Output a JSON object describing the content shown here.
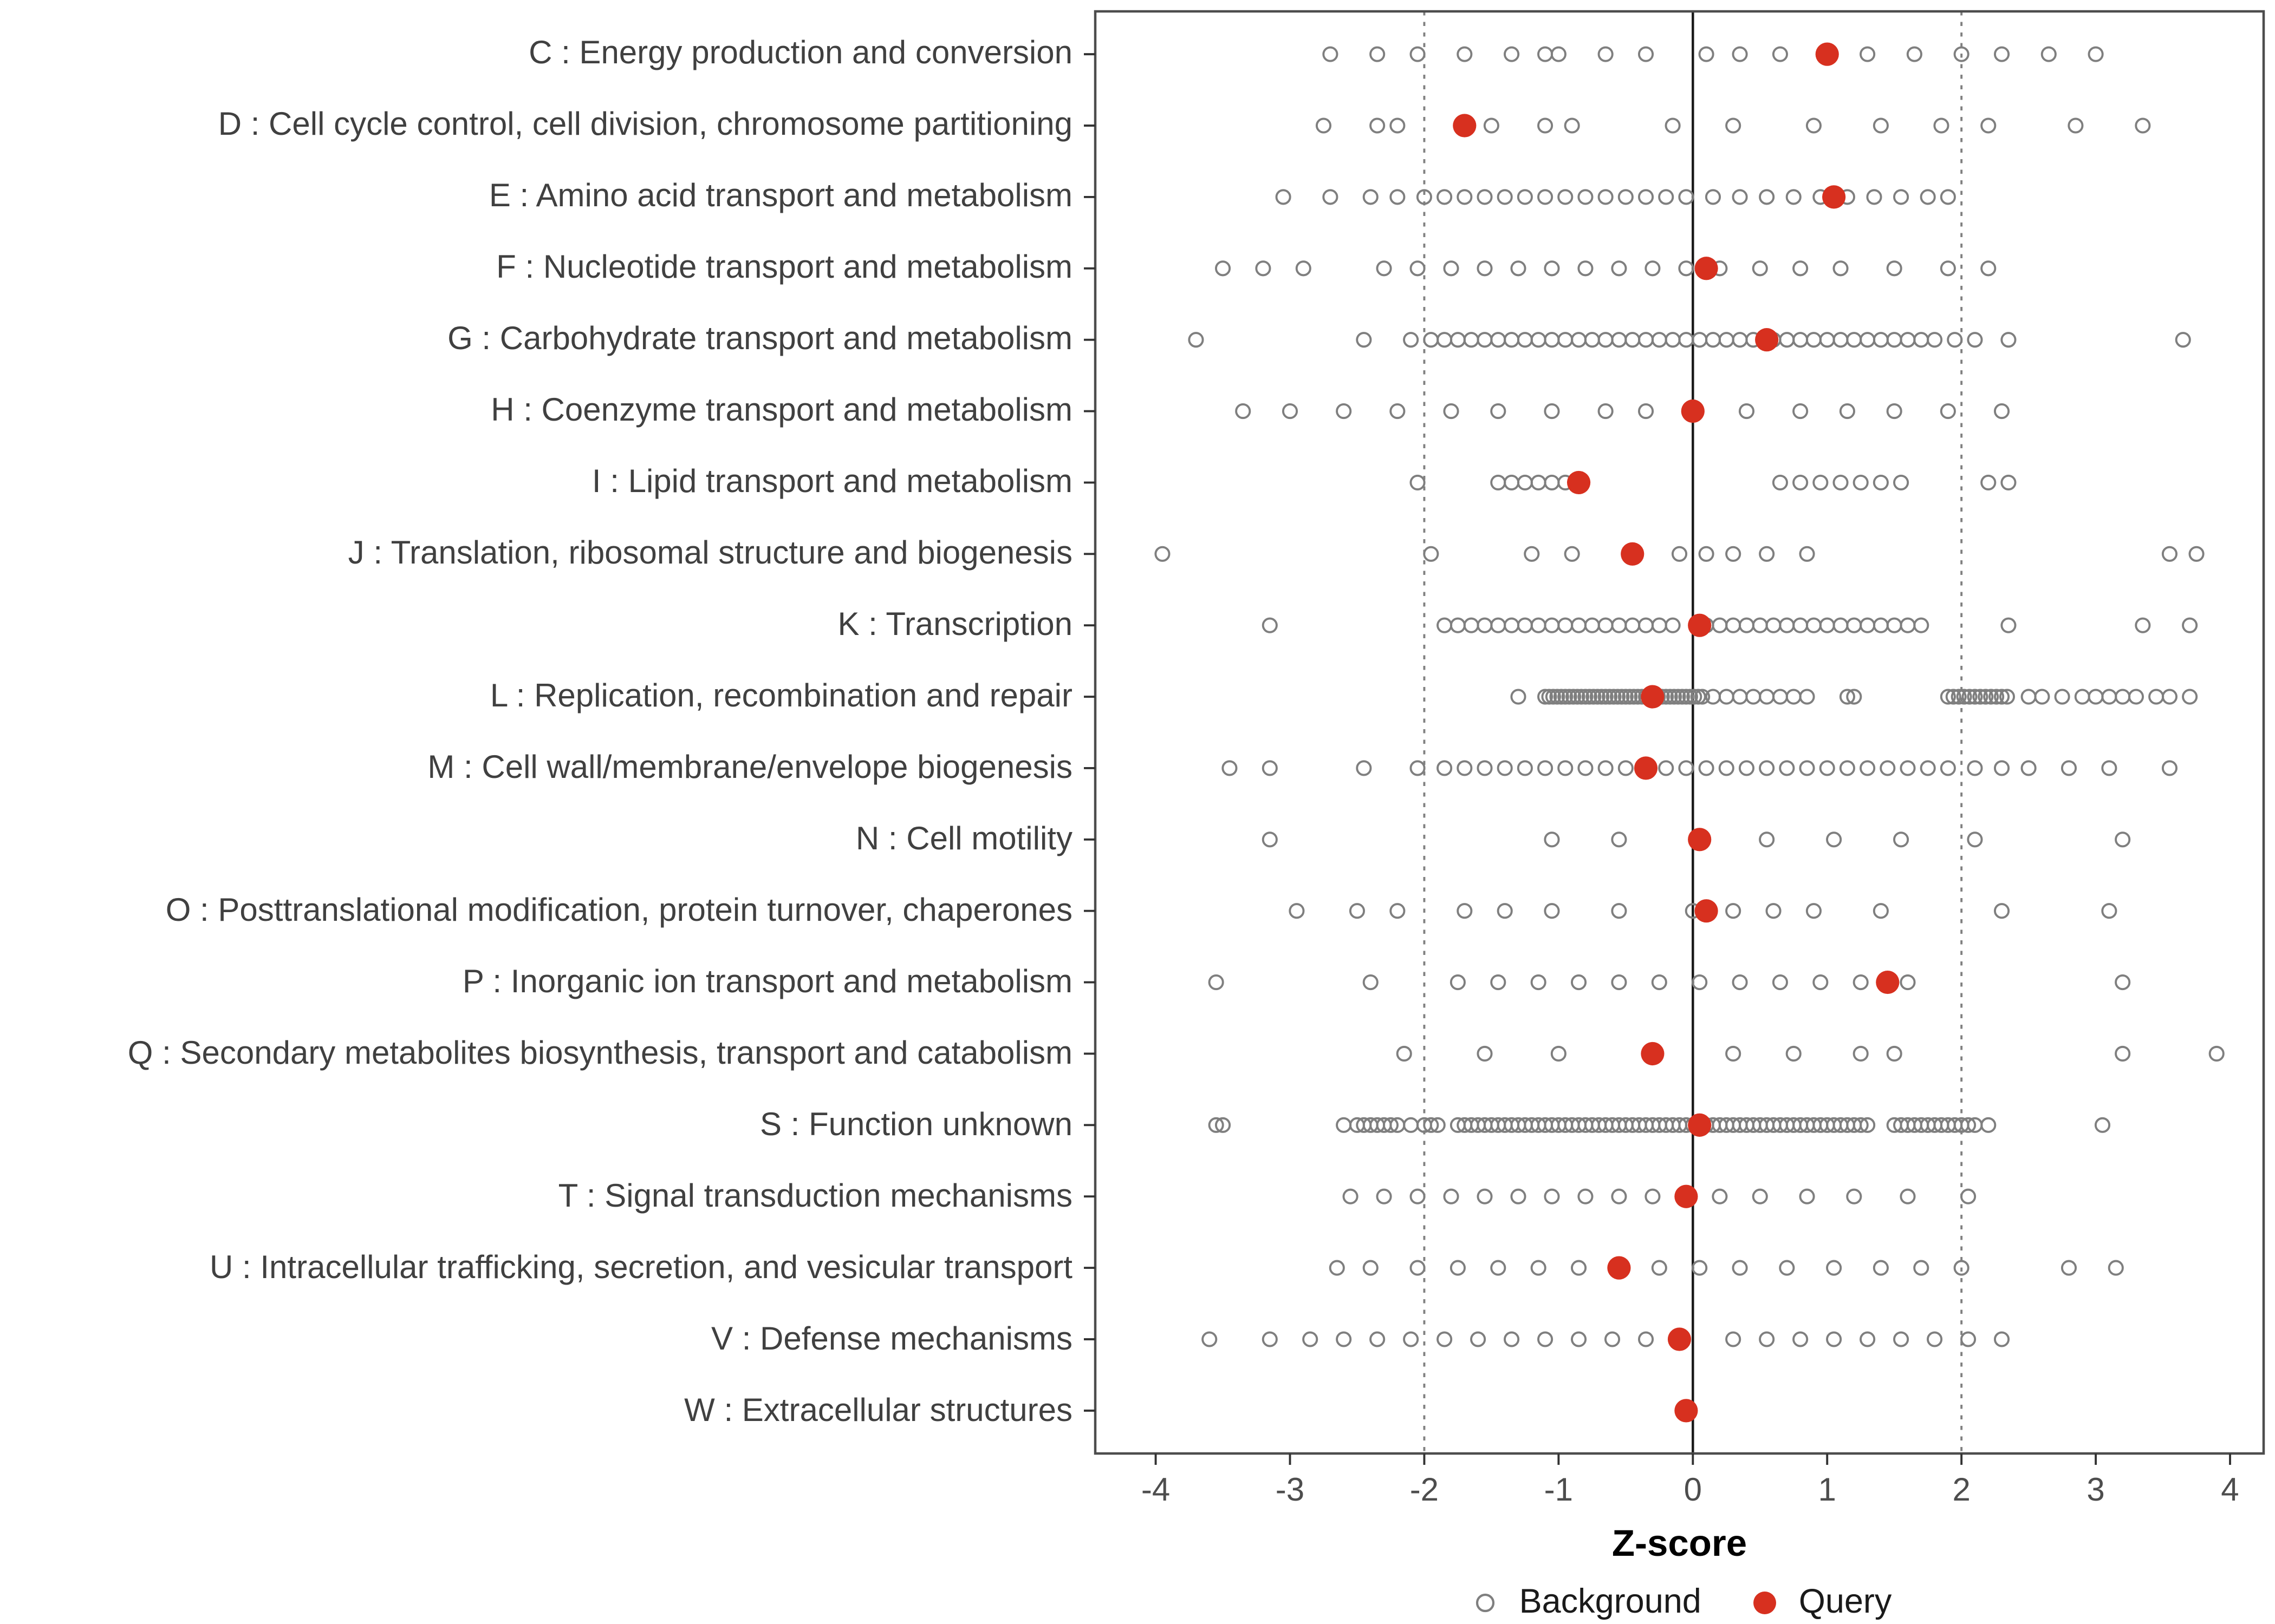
{
  "chart_data": {
    "type": "scatter",
    "title": "",
    "xlabel": "Z-score",
    "x_ticks": [
      -4,
      -3,
      -2,
      -1,
      0,
      1,
      2,
      3,
      4
    ],
    "xlim": [
      -4.45,
      4.25
    ],
    "grid": false,
    "reference_lines": {
      "solid": [
        0
      ],
      "dotted": [
        -2,
        2
      ]
    },
    "legend_position": "bottom",
    "legend": [
      {
        "label": "Background",
        "marker": "open-circle",
        "color": "#7f7f7f"
      },
      {
        "label": "Query",
        "marker": "filled-circle",
        "color": "#d7301f"
      }
    ],
    "categories": [
      {
        "label": "C : Energy production and conversion",
        "query": 1.0,
        "background": [
          -2.7,
          -2.35,
          -2.05,
          -1.7,
          -1.35,
          -1.1,
          -1.0,
          -0.65,
          -0.35,
          0.1,
          0.35,
          0.65,
          1.3,
          1.65,
          2.0,
          2.3,
          2.65,
          3.0
        ]
      },
      {
        "label": "D : Cell cycle control, cell division, chromosome partitioning",
        "query": -1.7,
        "background": [
          -2.75,
          -2.35,
          -2.2,
          -1.5,
          -1.1,
          -0.9,
          -0.15,
          0.3,
          0.9,
          1.4,
          1.85,
          2.2,
          2.85,
          3.35
        ]
      },
      {
        "label": "E : Amino acid transport and metabolism",
        "query": 1.05,
        "background": [
          -3.05,
          -2.7,
          -2.4,
          -2.2,
          -2.0,
          -1.85,
          -1.7,
          -1.55,
          -1.4,
          -1.25,
          -1.1,
          -0.95,
          -0.8,
          -0.65,
          -0.5,
          -0.35,
          -0.2,
          -0.05,
          0.15,
          0.35,
          0.55,
          0.75,
          0.95,
          1.15,
          1.35,
          1.55,
          1.75,
          1.9
        ]
      },
      {
        "label": "F : Nucleotide transport and metabolism",
        "query": 0.1,
        "background": [
          -3.5,
          -3.2,
          -2.9,
          -2.3,
          -2.05,
          -1.8,
          -1.55,
          -1.3,
          -1.05,
          -0.8,
          -0.55,
          -0.3,
          -0.05,
          0.2,
          0.5,
          0.8,
          1.1,
          1.5,
          1.9,
          2.2
        ]
      },
      {
        "label": "G : Carbohydrate transport and metabolism",
        "query": 0.55,
        "background": [
          -3.7,
          -2.45,
          -2.1,
          -1.95,
          -1.85,
          -1.75,
          -1.65,
          -1.55,
          -1.45,
          -1.35,
          -1.25,
          -1.15,
          -1.05,
          -0.95,
          -0.85,
          -0.75,
          -0.65,
          -0.55,
          -0.45,
          -0.35,
          -0.25,
          -0.15,
          -0.05,
          0.05,
          0.15,
          0.25,
          0.35,
          0.45,
          0.6,
          0.7,
          0.8,
          0.9,
          1.0,
          1.1,
          1.2,
          1.3,
          1.4,
          1.5,
          1.6,
          1.7,
          1.8,
          1.95,
          2.1,
          2.35,
          3.65
        ]
      },
      {
        "label": "H : Coenzyme transport and metabolism",
        "query": 0.0,
        "background": [
          -3.35,
          -3.0,
          -2.6,
          -2.2,
          -1.8,
          -1.45,
          -1.05,
          -0.65,
          -0.35,
          0.0,
          0.4,
          0.8,
          1.15,
          1.5,
          1.9,
          2.3
        ]
      },
      {
        "label": "I : Lipid transport and metabolism",
        "query": -0.85,
        "background": [
          -2.05,
          -1.45,
          -1.35,
          -1.25,
          -1.15,
          -1.05,
          -0.95,
          0.65,
          0.8,
          0.95,
          1.1,
          1.25,
          1.4,
          1.55,
          2.2,
          2.35
        ]
      },
      {
        "label": "J : Translation, ribosomal structure and biogenesis",
        "query": -0.45,
        "background": [
          -3.95,
          -1.95,
          -1.2,
          -0.9,
          -0.1,
          0.1,
          0.3,
          0.55,
          0.85,
          3.55,
          3.75
        ]
      },
      {
        "label": "K : Transcription",
        "query": 0.05,
        "background": [
          -3.15,
          -1.85,
          -1.75,
          -1.65,
          -1.55,
          -1.45,
          -1.35,
          -1.25,
          -1.15,
          -1.05,
          -0.95,
          -0.85,
          -0.75,
          -0.65,
          -0.55,
          -0.45,
          -0.35,
          -0.25,
          -0.15,
          0.1,
          0.2,
          0.3,
          0.4,
          0.5,
          0.6,
          0.7,
          0.8,
          0.9,
          1.0,
          1.1,
          1.2,
          1.3,
          1.4,
          1.5,
          1.6,
          1.7,
          2.35,
          3.35,
          3.7
        ]
      },
      {
        "label": "L : Replication, recombination and repair",
        "query": -0.3,
        "background": [
          -1.3,
          -1.1,
          -1.07,
          -1.04,
          -1.01,
          -0.98,
          -0.95,
          -0.92,
          -0.89,
          -0.86,
          -0.83,
          -0.8,
          -0.77,
          -0.74,
          -0.71,
          -0.68,
          -0.65,
          -0.62,
          -0.59,
          -0.56,
          -0.53,
          -0.5,
          -0.47,
          -0.44,
          -0.41,
          -0.38,
          -0.35,
          -0.32,
          -0.29,
          -0.26,
          -0.23,
          -0.2,
          -0.17,
          -0.14,
          -0.11,
          -0.08,
          -0.05,
          -0.02,
          0.01,
          0.04,
          0.07,
          0.15,
          0.25,
          0.35,
          0.45,
          0.55,
          0.65,
          0.75,
          0.85,
          1.15,
          1.2,
          1.9,
          1.94,
          1.98,
          2.02,
          2.06,
          2.1,
          2.14,
          2.18,
          2.22,
          2.26,
          2.3,
          2.34,
          2.5,
          2.6,
          2.75,
          2.9,
          3.0,
          3.1,
          3.2,
          3.3,
          3.45,
          3.55,
          3.7
        ]
      },
      {
        "label": "M : Cell wall/membrane/envelope biogenesis",
        "query": -0.35,
        "background": [
          -3.45,
          -3.15,
          -2.45,
          -2.05,
          -1.85,
          -1.7,
          -1.55,
          -1.4,
          -1.25,
          -1.1,
          -0.95,
          -0.8,
          -0.65,
          -0.5,
          -0.35,
          -0.2,
          -0.05,
          0.1,
          0.25,
          0.4,
          0.55,
          0.7,
          0.85,
          1.0,
          1.15,
          1.3,
          1.45,
          1.6,
          1.75,
          1.9,
          2.1,
          2.3,
          2.5,
          2.8,
          3.1,
          3.55
        ]
      },
      {
        "label": "N : Cell motility",
        "query": 0.05,
        "background": [
          -3.15,
          -1.05,
          -0.55,
          0.05,
          0.55,
          1.05,
          1.55,
          2.1,
          3.2
        ]
      },
      {
        "label": "O : Posttranslational modification, protein turnover, chaperones",
        "query": 0.1,
        "background": [
          -2.95,
          -2.5,
          -2.2,
          -1.7,
          -1.4,
          -1.05,
          -0.55,
          0.0,
          0.3,
          0.6,
          0.9,
          1.4,
          2.3,
          3.1
        ]
      },
      {
        "label": "P : Inorganic ion transport and metabolism",
        "query": 1.45,
        "background": [
          -3.55,
          -2.4,
          -1.75,
          -1.45,
          -1.15,
          -0.85,
          -0.55,
          -0.25,
          0.05,
          0.35,
          0.65,
          0.95,
          1.25,
          1.6,
          3.2
        ]
      },
      {
        "label": "Q : Secondary metabolites biosynthesis, transport and catabolism",
        "query": -0.3,
        "background": [
          -2.15,
          -1.55,
          -1.0,
          0.3,
          0.75,
          1.25,
          1.5,
          3.2,
          3.9
        ]
      },
      {
        "label": "S : Function unknown",
        "query": 0.05,
        "background": [
          -3.55,
          -3.5,
          -2.6,
          -2.5,
          -2.45,
          -2.4,
          -2.35,
          -2.3,
          -2.25,
          -2.2,
          -2.1,
          -2.0,
          -1.95,
          -1.9,
          -1.75,
          -1.7,
          -1.65,
          -1.6,
          -1.55,
          -1.5,
          -1.45,
          -1.4,
          -1.35,
          -1.3,
          -1.25,
          -1.2,
          -1.15,
          -1.1,
          -1.05,
          -1.0,
          -0.95,
          -0.9,
          -0.85,
          -0.8,
          -0.75,
          -0.7,
          -0.65,
          -0.6,
          -0.55,
          -0.5,
          -0.45,
          -0.4,
          -0.35,
          -0.3,
          -0.25,
          -0.2,
          -0.15,
          -0.1,
          -0.05,
          0.0,
          0.1,
          0.15,
          0.2,
          0.25,
          0.3,
          0.35,
          0.4,
          0.45,
          0.5,
          0.55,
          0.6,
          0.65,
          0.7,
          0.75,
          0.8,
          0.85,
          0.9,
          0.95,
          1.0,
          1.05,
          1.1,
          1.15,
          1.2,
          1.25,
          1.3,
          1.5,
          1.55,
          1.6,
          1.65,
          1.7,
          1.75,
          1.8,
          1.85,
          1.9,
          1.95,
          2.0,
          2.05,
          2.1,
          2.2,
          3.05
        ]
      },
      {
        "label": "T : Signal transduction mechanisms",
        "query": -0.05,
        "background": [
          -2.55,
          -2.3,
          -2.05,
          -1.8,
          -1.55,
          -1.3,
          -1.05,
          -0.8,
          -0.55,
          -0.3,
          -0.05,
          0.2,
          0.5,
          0.85,
          1.2,
          1.6,
          2.05
        ]
      },
      {
        "label": "U : Intracellular trafficking, secretion, and vesicular transport",
        "query": -0.55,
        "background": [
          -2.65,
          -2.4,
          -2.05,
          -1.75,
          -1.45,
          -1.15,
          -0.85,
          -0.55,
          -0.25,
          0.05,
          0.35,
          0.7,
          1.05,
          1.4,
          1.7,
          2.0,
          2.8,
          3.15
        ]
      },
      {
        "label": "V : Defense mechanisms",
        "query": -0.1,
        "background": [
          -3.6,
          -3.15,
          -2.85,
          -2.6,
          -2.35,
          -2.1,
          -1.85,
          -1.6,
          -1.35,
          -1.1,
          -0.85,
          -0.6,
          -0.35,
          -0.1,
          0.3,
          0.55,
          0.8,
          1.05,
          1.3,
          1.55,
          1.8,
          2.05,
          2.3
        ]
      },
      {
        "label": "W : Extracellular structures",
        "query": -0.05,
        "background": []
      }
    ]
  },
  "colors": {
    "panel_border": "#4d4d4d",
    "axis_tick": "#333333",
    "ref_line_solid": "#1a1a1a",
    "ref_line_dotted": "#808080",
    "axis_text": "#4d4d4d",
    "category_text": "#404040"
  }
}
